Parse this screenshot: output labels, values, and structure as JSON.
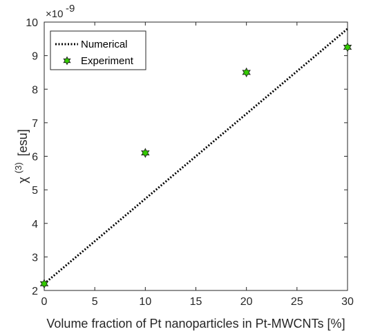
{
  "chart_data": {
    "type": "line",
    "xlabel": "Volume fraction of Pt nanoparticles in Pt-MWCNTs [%]",
    "ylabel": "χ (3) [esu]",
    "ylabel_symbol": "χ",
    "ylabel_superscript": "(3)",
    "ylabel_unit": "[esu]",
    "y_exponent_base": "×10",
    "y_exponent_power": "-9",
    "xlim": [
      0,
      30
    ],
    "ylim": [
      2,
      10
    ],
    "xticks": [
      0,
      5,
      10,
      15,
      20,
      25,
      30
    ],
    "yticks": [
      2,
      3,
      4,
      5,
      6,
      7,
      8,
      9,
      10
    ],
    "grid": false,
    "legend_placement": "top-left",
    "series": [
      {
        "name": "Numerical",
        "style": "dotted-line",
        "color": "#000000",
        "x": [
          0,
          30
        ],
        "y": [
          2.2,
          9.8
        ]
      },
      {
        "name": "Experiment",
        "style": "star-marker",
        "color": "#33cc00",
        "x": [
          0,
          10,
          20,
          30
        ],
        "y": [
          2.2,
          6.1,
          8.5,
          9.25
        ]
      }
    ]
  }
}
